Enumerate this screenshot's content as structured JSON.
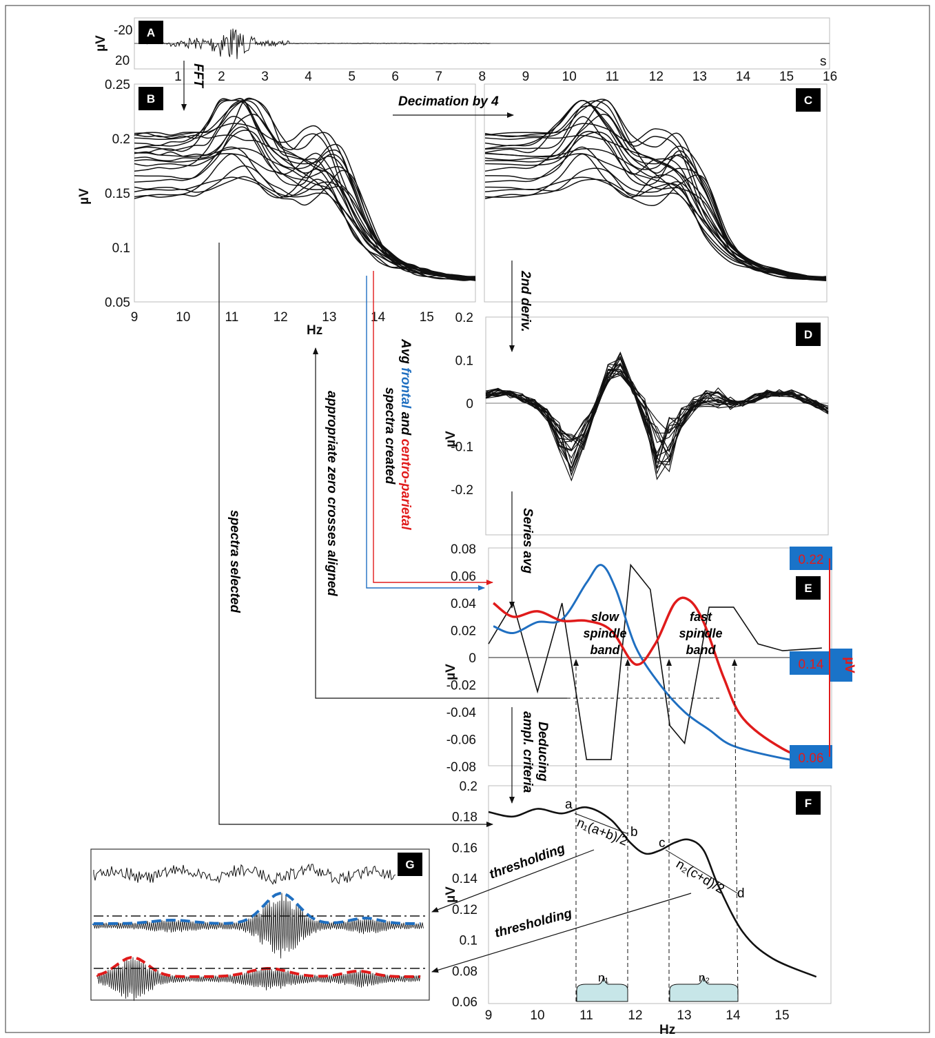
{
  "colors": {
    "frontal": "#1f6fc1",
    "centro_parietal": "#e01b1b",
    "trace": "#111111",
    "band_fill": "#c7e6e8",
    "axis_box": "#1a73c8"
  },
  "chart_data": [
    {
      "panel": "A",
      "type": "line",
      "label": "A",
      "ylabel": "µV",
      "xunit": "s",
      "yticks": [
        "-20",
        "20"
      ],
      "xticks": [
        "1",
        "2",
        "3",
        "4",
        "5",
        "6",
        "7",
        "8",
        "9",
        "10",
        "11",
        "12",
        "13",
        "14",
        "15",
        "16"
      ]
    },
    {
      "panel": "B",
      "type": "line",
      "label": "B",
      "ylabel": "µV",
      "xlabel": "Hz",
      "yticks": [
        "0.25",
        "0.2",
        "0.15",
        "0.1",
        "0.05"
      ],
      "xticks": [
        "9",
        "10",
        "11",
        "12",
        "13",
        "14",
        "15"
      ],
      "ylim": [
        0.05,
        0.25
      ],
      "xlim": [
        9,
        16
      ]
    },
    {
      "panel": "C",
      "type": "line",
      "label": "C"
    },
    {
      "panel": "D",
      "type": "line",
      "label": "D",
      "ylabel": "µV",
      "yticks": [
        "0.2",
        "0.1",
        "0",
        "-0.1",
        "-0.2"
      ],
      "ylim": [
        -0.25,
        0.2
      ]
    },
    {
      "panel": "E",
      "type": "line",
      "label": "E",
      "ylabel": "µV",
      "yticks": [
        "0.08",
        "0.06",
        "0.04",
        "0.02",
        "0",
        "-0.02",
        "-0.04",
        "-0.06",
        "-0.08"
      ],
      "ylim": [
        -0.08,
        0.08
      ],
      "right_axis": {
        "label": "µV",
        "ticks": [
          "0.22",
          "0.14",
          "0.06"
        ]
      },
      "series": [
        {
          "key": "frontal",
          "x": [
            9.1,
            9.5,
            10,
            10.5,
            11,
            11.3,
            11.6,
            12,
            12.5,
            13,
            13.5,
            14,
            15,
            15.8
          ],
          "y": [
            0.163,
            0.158,
            0.166,
            0.168,
            0.195,
            0.208,
            0.19,
            0.148,
            0.12,
            0.1,
            0.087,
            0.075,
            0.066,
            0.062
          ]
        },
        {
          "key": "centro_parietal",
          "x": [
            9.1,
            9.5,
            10,
            10.5,
            11,
            11.5,
            12,
            12.4,
            12.8,
            13.1,
            13.4,
            13.8,
            14.2,
            15,
            15.8
          ],
          "y": [
            0.18,
            0.17,
            0.174,
            0.167,
            0.167,
            0.16,
            0.135,
            0.15,
            0.18,
            0.182,
            0.165,
            0.125,
            0.095,
            0.073,
            0.062
          ]
        },
        {
          "key": "second_derivative_avg",
          "x": [
            9,
            9.5,
            10,
            10.5,
            11,
            11.5,
            11.9,
            12.3,
            12.7,
            13,
            13.5,
            14,
            14.5,
            15,
            15.8
          ],
          "y": [
            0.01,
            0.04,
            -0.025,
            0.04,
            -0.075,
            -0.075,
            0.068,
            0.05,
            -0.05,
            -0.063,
            0.037,
            0.037,
            0.01,
            0.005,
            0.007
          ]
        }
      ]
    },
    {
      "panel": "F",
      "type": "line",
      "label": "F",
      "ylabel": "µV",
      "xlabel": "Hz",
      "yticks": [
        "0.2",
        "0.18",
        "0.16",
        "0.14",
        "0.12",
        "0.1",
        "0.08",
        "0.06"
      ],
      "xticks": [
        "9",
        "10",
        "11",
        "12",
        "13",
        "14",
        "15"
      ],
      "ylim": [
        0.06,
        0.2
      ],
      "xlim": [
        9,
        15.7
      ],
      "series": [
        {
          "key": "selected_spectrum",
          "x": [
            9,
            9.5,
            10,
            10.5,
            11,
            11.5,
            11.9,
            12.2,
            12.5,
            12.8,
            13.1,
            13.4,
            13.7,
            14.2,
            14.8,
            15.7
          ],
          "y": [
            0.183,
            0.18,
            0.185,
            0.182,
            0.186,
            0.178,
            0.163,
            0.156,
            0.158,
            0.163,
            0.165,
            0.158,
            0.135,
            0.105,
            0.088,
            0.076
          ]
        }
      ],
      "annotations": [
        "a",
        "b",
        "c",
        "d",
        "n₁(a+b)/2",
        "n₂(c+d)/2"
      ]
    },
    {
      "panel": "G",
      "type": "line",
      "label": "G"
    }
  ],
  "labels": {
    "fft": "FFT",
    "decimation": "Decimation by 4",
    "second_deriv": "2nd deriv.",
    "series_avg": "Series avg",
    "deducing_1": "Deducing",
    "deducing_2": "ampl. criteria",
    "avg_1a": "Avg ",
    "avg_1b": "frontal",
    "avg_1c": " and ",
    "avg_1d": "centro-parietal",
    "avg_2": "spectra created",
    "zero_cross": "appropriate zero crosses aligned",
    "spectra_selected": "spectra selected",
    "slow_1": "slow",
    "slow_2": "spindle",
    "slow_3": "band",
    "fast_1": "fast",
    "fast_2": "spindle",
    "fast_3": "band",
    "thresholding_1": "thresholding",
    "thresholding_2": "thresholding",
    "n1": "n₁",
    "n2": "n₂"
  }
}
